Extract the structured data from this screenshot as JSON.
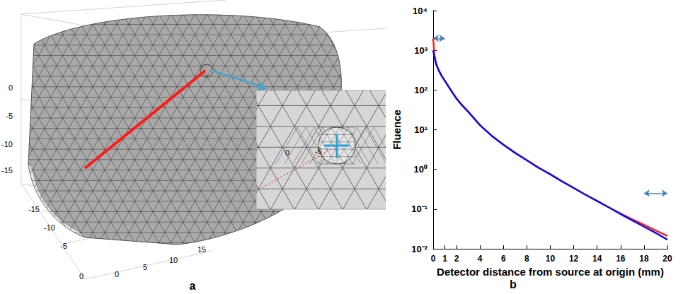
{
  "panel_a": {
    "label": "a",
    "z_ticks": [
      0,
      -5,
      -10,
      -15
    ],
    "y_ticks": [
      -15,
      -10,
      -5,
      0
    ],
    "x_ticks": [
      0,
      5,
      10,
      15
    ],
    "back_ticks": [
      0,
      -5
    ]
  },
  "chart_data": {
    "label": "b",
    "type": "line",
    "x_label": "Detector distance from source at origin (mm)",
    "y_label": "Fluence",
    "log": "y",
    "grid": false,
    "xlim": [
      0,
      20
    ],
    "xticks": [
      0,
      1,
      2,
      4,
      6,
      8,
      10,
      12,
      14,
      16,
      18,
      20
    ],
    "ylim": [
      0.01,
      10000
    ],
    "yticks": [
      {
        "value": 0.01,
        "label": "10⁻²"
      },
      {
        "value": 0.1,
        "label": "10⁻¹"
      },
      {
        "value": 1,
        "label": "10⁰"
      },
      {
        "value": 10,
        "label": "10¹"
      },
      {
        "value": 100,
        "label": "10²"
      },
      {
        "value": 1000,
        "label": "10³"
      },
      {
        "value": 10000,
        "label": "10⁴"
      }
    ],
    "x": [
      0,
      0.1,
      0.25,
      0.5,
      0.75,
      1,
      1.5,
      2,
      2.5,
      3,
      4,
      5,
      6,
      7,
      8,
      9,
      10,
      11,
      12,
      13,
      14,
      15,
      16,
      17,
      18,
      19,
      20
    ],
    "series": [
      {
        "color": "#ff2020",
        "values": [
          2000,
          800,
          470,
          305,
          222,
          172,
          101,
          61,
          41,
          28.5,
          13,
          7,
          4.2,
          2.6,
          1.7,
          1.1,
          0.75,
          0.5,
          0.34,
          0.23,
          0.16,
          0.11,
          0.077,
          0.055,
          0.04,
          0.029,
          0.021
        ]
      },
      {
        "color": "#1010e0",
        "values": [
          1000,
          700,
          450,
          300,
          220,
          170,
          100,
          60,
          40,
          28,
          13,
          7,
          4.2,
          2.6,
          1.7,
          1.1,
          0.75,
          0.5,
          0.34,
          0.23,
          0.16,
          0.11,
          0.075,
          0.052,
          0.036,
          0.025,
          0.017
        ]
      }
    ],
    "highlights": [
      {
        "x": [
          0,
          1
        ],
        "y": 2000
      },
      {
        "x": [
          18,
          20
        ],
        "y": 0.25
      }
    ]
  }
}
